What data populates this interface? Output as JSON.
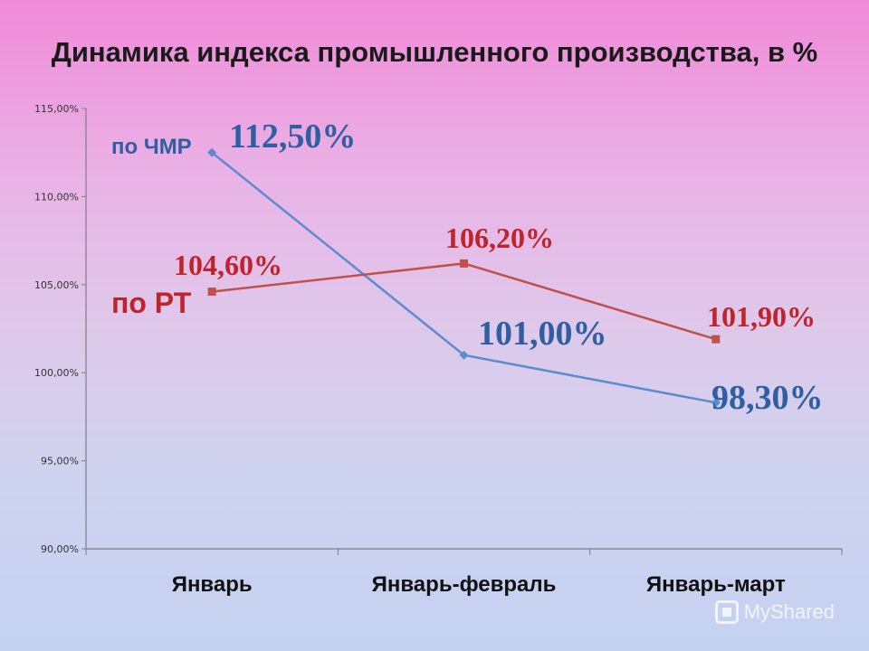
{
  "page": {
    "title": "Динамика индекса промышленного производства, в %",
    "watermark": "MyShared"
  },
  "colors": {
    "chmr": "#5b8ccf",
    "rt": "#c0504d",
    "chmr_label": "#2e5fa3",
    "rt_label": "#c0232b",
    "axis": "#7f7f7f"
  },
  "chart_data": {
    "type": "line",
    "title": "Динамика индекса промышленного производства, в %",
    "categories": [
      "Январь",
      "Январь-февраль",
      "Январь-март"
    ],
    "ylim": [
      90,
      115
    ],
    "ytick_values": [
      90,
      95,
      100,
      105,
      110,
      115
    ],
    "ytick_labels": [
      "90,00%",
      "95,00%",
      "100,00%",
      "105,00%",
      "110,00%",
      "115,00%"
    ],
    "grid": false,
    "series": [
      {
        "name": "по ЧМР",
        "values": [
          112.5,
          101.0,
          98.3
        ],
        "labels": [
          "112,50%",
          "101,00%",
          "98,30%"
        ],
        "marker": "diamond"
      },
      {
        "name": "по РТ",
        "values": [
          104.6,
          106.2,
          101.9
        ],
        "labels": [
          "104,60%",
          "106,20%",
          "101,90%"
        ],
        "marker": "square"
      }
    ]
  }
}
